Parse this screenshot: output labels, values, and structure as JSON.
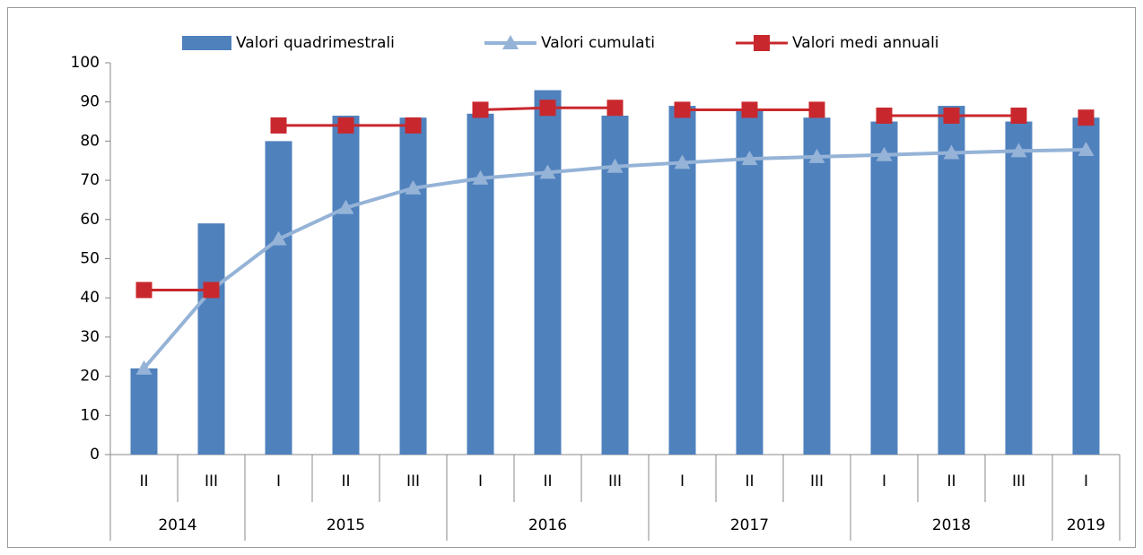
{
  "chart_data": {
    "type": "bar",
    "groups": [
      {
        "name": "2014",
        "categories": [
          "II",
          "III"
        ]
      },
      {
        "name": "2015",
        "categories": [
          "I",
          "II",
          "III"
        ]
      },
      {
        "name": "2016",
        "categories": [
          "I",
          "II",
          "III"
        ]
      },
      {
        "name": "2017",
        "categories": [
          "I",
          "II",
          "III"
        ]
      },
      {
        "name": "2018",
        "categories": [
          "I",
          "II",
          "III"
        ]
      },
      {
        "name": "2019",
        "categories": [
          "I"
        ]
      }
    ],
    "series": [
      {
        "name": "Valori quadrimestrali",
        "type": "bar",
        "color": "#4f81bd",
        "values": [
          22,
          59,
          80,
          86.5,
          86,
          87,
          93,
          86.5,
          89,
          88,
          86,
          85,
          89,
          85,
          86
        ]
      },
      {
        "name": "Valori cumulati",
        "type": "line",
        "marker": "triangle",
        "color": "#95b3d7",
        "values": [
          22,
          42,
          55,
          63,
          68,
          70.5,
          72,
          73.5,
          74.5,
          75.5,
          76,
          76.5,
          77,
          77.5,
          77.8
        ]
      },
      {
        "name": "Valori medi annuali",
        "type": "line",
        "marker": "square",
        "color": "#c8282d",
        "values": [
          42,
          42,
          84,
          84,
          84,
          88,
          88.5,
          88.5,
          88,
          88,
          88,
          86.5,
          86.5,
          86.5,
          86
        ]
      }
    ],
    "ylim": [
      0,
      100
    ],
    "yticks": [
      0,
      10,
      20,
      30,
      40,
      50,
      60,
      70,
      80,
      90,
      100
    ],
    "grid": false
  }
}
